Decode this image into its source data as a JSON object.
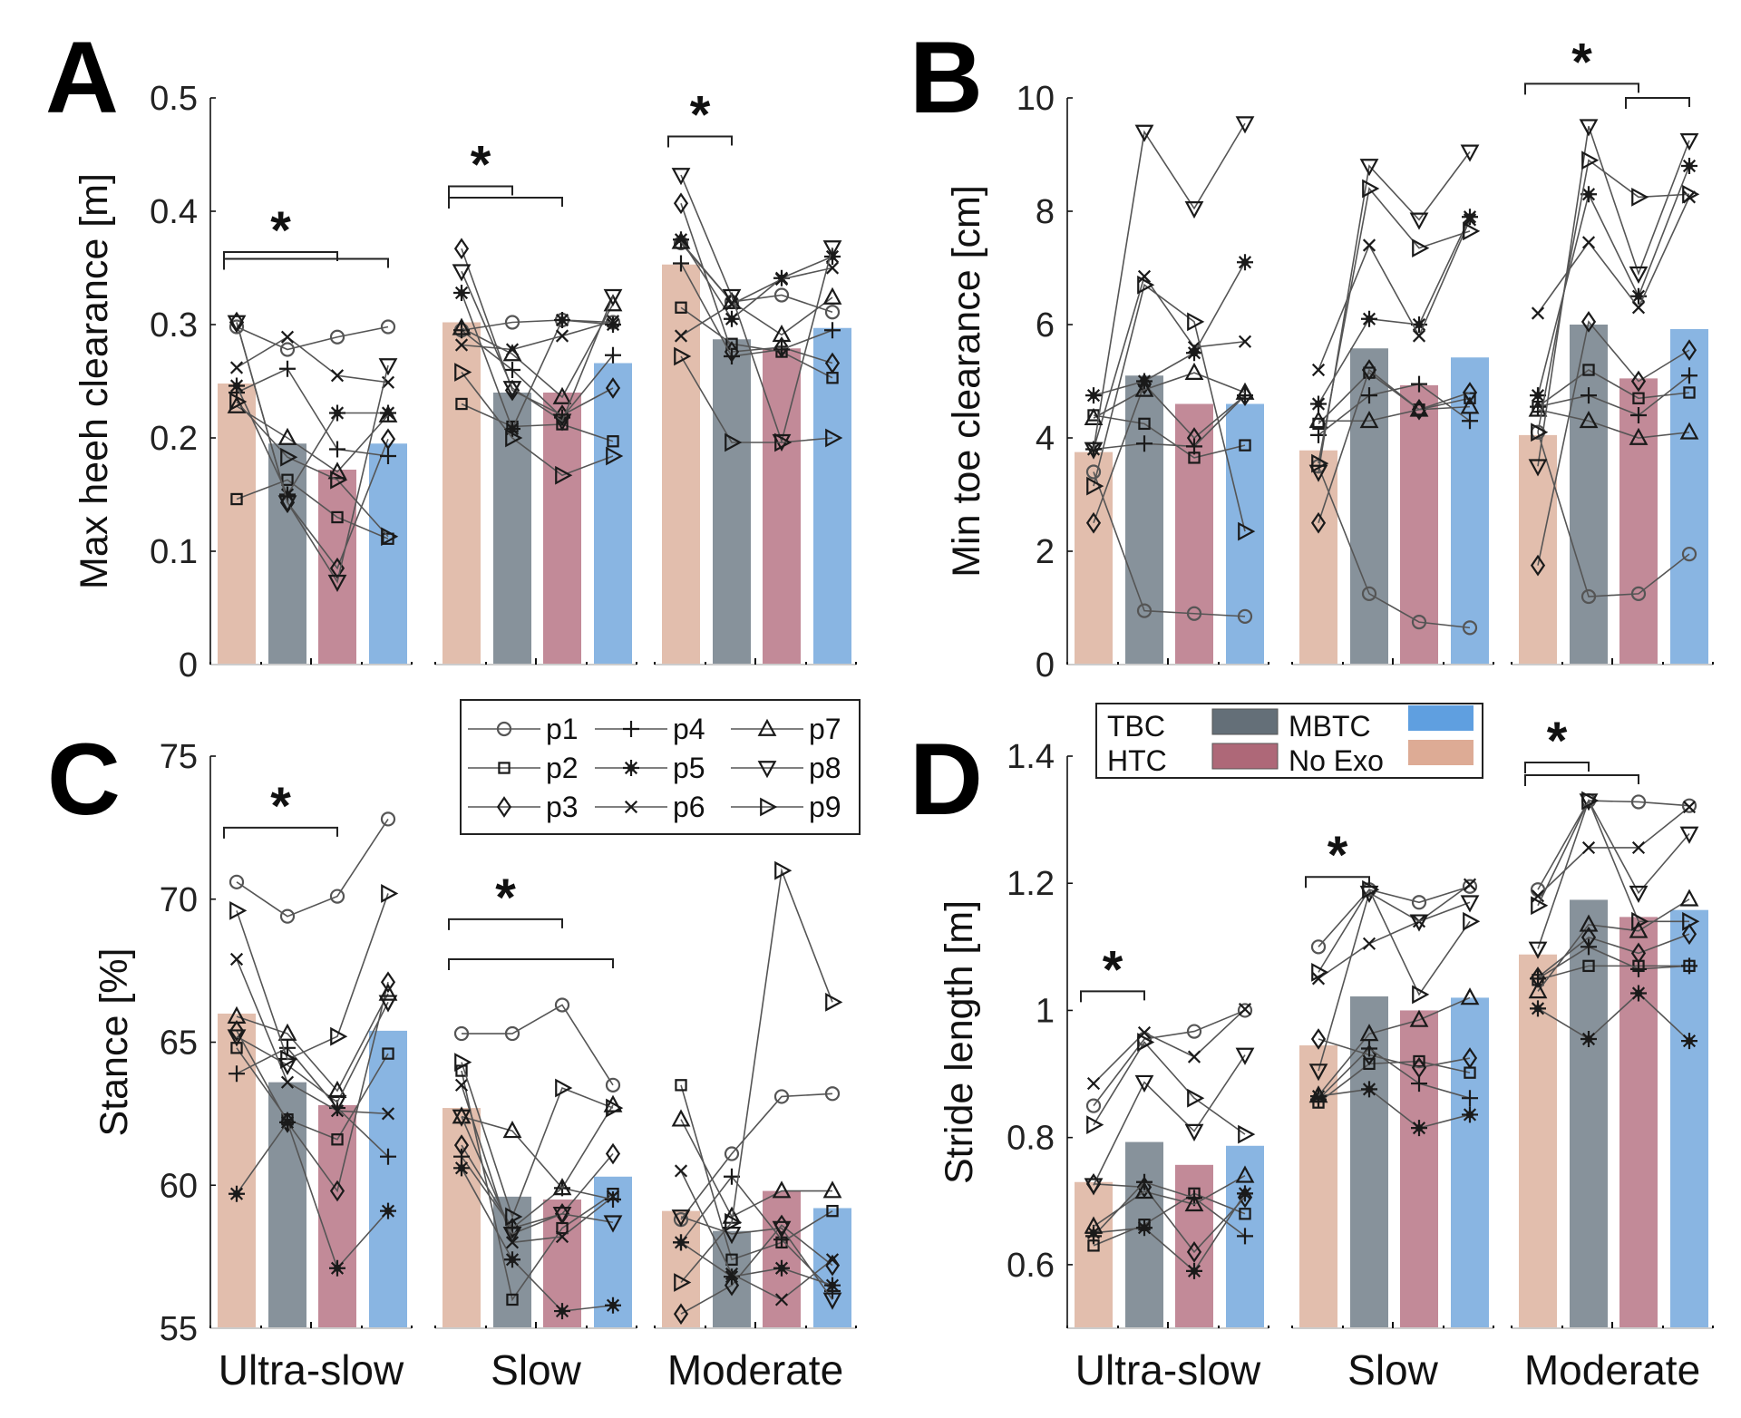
{
  "chart_data": [
    {
      "id": "A",
      "type": "bar",
      "panel_label": "A",
      "title": "",
      "ylabel": "Max heeh clearance [m]",
      "xlabel": "",
      "ylim": [
        0,
        0.5
      ],
      "yticks": [
        0,
        0.1,
        0.2,
        0.3,
        0.4,
        0.5
      ],
      "ytick_labels": [
        "0",
        "0.1",
        "0.2",
        "0.3",
        "0.4",
        "0.5"
      ],
      "categories": [
        "Ultra-slow",
        "Slow",
        "Moderate"
      ],
      "conditions": [
        "No Exo",
        "TBC",
        "HTC",
        "MBTC"
      ],
      "bar_values": [
        [
          0.248,
          0.195,
          0.172,
          0.195
        ],
        [
          0.302,
          0.24,
          0.24,
          0.266
        ],
        [
          0.353,
          0.287,
          0.279,
          0.297
        ]
      ],
      "participants": {
        "p1": [
          [
            0.298,
            0.278,
            0.289,
            0.298
          ],
          [
            0.295,
            0.302,
            0.304,
            0.302
          ],
          [
            0.372,
            0.32,
            0.326,
            0.311
          ]
        ],
        "p2": [
          [
            0.146,
            0.163,
            0.13,
            0.111
          ],
          [
            0.23,
            0.21,
            0.212,
            0.197
          ],
          [
            0.315,
            0.283,
            0.276,
            0.253
          ]
        ],
        "p3": [
          [
            0.302,
            0.143,
            0.085,
            0.199
          ],
          [
            0.367,
            0.242,
            0.22,
            0.244
          ],
          [
            0.407,
            0.276,
            0.28,
            0.266
          ]
        ],
        "p4": [
          [
            0.24,
            0.261,
            0.19,
            0.184
          ],
          [
            0.295,
            0.26,
            0.218,
            0.273
          ],
          [
            0.354,
            0.272,
            0.278,
            0.295
          ]
        ],
        "p5": [
          [
            0.246,
            0.15,
            0.222,
            0.222
          ],
          [
            0.328,
            0.208,
            0.304,
            0.3
          ],
          [
            0.375,
            0.305,
            0.341,
            0.36
          ]
        ],
        "p6": [
          [
            0.262,
            0.289,
            0.255,
            0.249
          ],
          [
            0.282,
            0.278,
            0.29,
            0.303
          ],
          [
            0.29,
            0.318,
            0.34,
            0.35
          ]
        ],
        "p7": [
          [
            0.228,
            0.2,
            0.17,
            0.22
          ],
          [
            0.297,
            0.274,
            0.236,
            0.318
          ],
          [
            0.373,
            0.32,
            0.291,
            0.324
          ]
        ],
        "p8": [
          [
            0.302,
            0.143,
            0.073,
            0.264
          ],
          [
            0.347,
            0.244,
            0.215,
            0.325
          ],
          [
            0.432,
            0.325,
            0.197,
            0.368
          ]
        ],
        "p9": [
          [
            0.232,
            0.183,
            0.163,
            0.113
          ],
          [
            0.258,
            0.2,
            0.167,
            0.184
          ],
          [
            0.272,
            0.196,
            0.196,
            0.2
          ]
        ]
      },
      "significance": [
        {
          "group": 0,
          "from": 0,
          "to": 2,
          "level": 0.364,
          "star": true
        },
        {
          "group": 0,
          "from": 0,
          "to": 3,
          "level": 0.358,
          "star": false
        },
        {
          "group": 1,
          "from": 0,
          "to": 1,
          "level": 0.422,
          "star": true
        },
        {
          "group": 1,
          "from": 0,
          "to": 2,
          "level": 0.412,
          "star": false
        },
        {
          "group": 2,
          "from": 0,
          "to": 1,
          "level": 0.466,
          "star": true
        }
      ],
      "show_group_labels": false
    },
    {
      "id": "B",
      "type": "bar",
      "panel_label": "B",
      "title": "",
      "ylabel": "Min toe clearance [cm]",
      "xlabel": "",
      "ylim": [
        0,
        10
      ],
      "yticks": [
        0,
        2,
        4,
        6,
        8,
        10
      ],
      "ytick_labels": [
        "0",
        "2",
        "4",
        "6",
        "8",
        "10"
      ],
      "categories": [
        "Ultra-slow",
        "Slow",
        "Moderate"
      ],
      "conditions": [
        "No Exo",
        "TBC",
        "HTC",
        "MBTC"
      ],
      "bar_values": [
        [
          3.75,
          5.1,
          4.6,
          4.6
        ],
        [
          3.78,
          5.58,
          4.93,
          5.42
        ],
        [
          4.05,
          6.0,
          5.05,
          5.92
        ]
      ],
      "participants": {
        "p1": [
          [
            3.4,
            0.95,
            0.9,
            0.85
          ],
          [
            3.5,
            1.25,
            0.75,
            0.65
          ],
          [
            4.1,
            1.2,
            1.25,
            1.95
          ]
        ],
        "p2": [
          [
            4.4,
            4.25,
            3.65,
            3.87
          ],
          [
            4.25,
            5.15,
            4.5,
            4.7
          ],
          [
            4.55,
            5.2,
            4.7,
            4.8
          ]
        ],
        "p3": [
          [
            2.5,
            4.95,
            4.0,
            4.75
          ],
          [
            2.5,
            5.2,
            4.5,
            4.8
          ],
          [
            1.75,
            6.05,
            5.0,
            5.55
          ]
        ],
        "p4": [
          [
            3.8,
            3.9,
            3.85,
            4.75
          ],
          [
            4.05,
            4.75,
            4.95,
            4.3
          ],
          [
            4.55,
            4.75,
            4.4,
            5.1
          ]
        ],
        "p5": [
          [
            4.75,
            5.0,
            5.5,
            7.1
          ],
          [
            4.6,
            6.1,
            6.0,
            7.9
          ],
          [
            4.75,
            8.3,
            6.5,
            8.8
          ]
        ],
        "p6": [
          [
            3.8,
            6.85,
            5.6,
            5.7
          ],
          [
            5.2,
            7.4,
            5.8,
            7.85
          ],
          [
            6.2,
            7.45,
            6.3,
            8.25
          ]
        ],
        "p7": [
          [
            4.35,
            4.85,
            5.15,
            4.8
          ],
          [
            4.3,
            4.3,
            4.5,
            4.55
          ],
          [
            4.5,
            4.3,
            4.0,
            4.1
          ]
        ],
        "p8": [
          [
            3.8,
            9.4,
            8.05,
            9.55
          ],
          [
            3.4,
            8.8,
            7.85,
            9.05
          ],
          [
            3.5,
            9.5,
            6.9,
            9.25
          ]
        ],
        "p9": [
          [
            3.15,
            6.7,
            6.05,
            2.35
          ],
          [
            3.55,
            8.4,
            7.35,
            7.65
          ],
          [
            4.1,
            8.9,
            8.25,
            8.3
          ]
        ]
      },
      "significance": [
        {
          "group": 2,
          "from": 0,
          "to": 2,
          "level": 10.25,
          "star": true
        },
        {
          "group": 2,
          "from": 2,
          "to": 3,
          "level": 10.0,
          "star": false
        }
      ],
      "show_group_labels": false
    },
    {
      "id": "C",
      "type": "bar",
      "panel_label": "C",
      "title": "",
      "ylabel": "Stance [%]",
      "xlabel": "",
      "ylim": [
        55,
        75
      ],
      "yticks": [
        55,
        60,
        65,
        70,
        75
      ],
      "ytick_labels": [
        "55",
        "60",
        "65",
        "70",
        "75"
      ],
      "categories": [
        "Ultra-slow",
        "Slow",
        "Moderate"
      ],
      "conditions": [
        "No Exo",
        "TBC",
        "HTC",
        "MBTC"
      ],
      "bar_values": [
        [
          66.0,
          63.6,
          62.8,
          65.4
        ],
        [
          62.7,
          59.6,
          59.5,
          60.3
        ],
        [
          59.1,
          58.4,
          59.8,
          59.2
        ]
      ],
      "participants": {
        "p1": [
          [
            70.6,
            69.4,
            70.1,
            72.8
          ],
          [
            65.3,
            65.3,
            66.3,
            63.5
          ],
          [
            58.8,
            61.1,
            63.1,
            63.2
          ]
        ],
        "p2": [
          [
            64.8,
            62.3,
            61.6,
            64.6
          ],
          [
            64.0,
            56.0,
            58.5,
            59.7
          ],
          [
            63.5,
            57.4,
            58.0,
            59.1
          ]
        ],
        "p3": [
          [
            65.4,
            62.2,
            59.8,
            67.1
          ],
          [
            61.4,
            58.5,
            59.0,
            61.1
          ],
          [
            55.5,
            56.5,
            58.6,
            57.2
          ]
        ],
        "p4": [
          [
            63.9,
            64.8,
            62.7,
            61.0
          ],
          [
            61.0,
            58.5,
            59.9,
            59.5
          ],
          [
            58.0,
            60.3,
            58.1,
            56.3
          ]
        ],
        "p5": [
          [
            59.7,
            62.2,
            57.1,
            59.1
          ],
          [
            60.6,
            57.4,
            55.6,
            55.8
          ],
          [
            58.0,
            56.8,
            57.1,
            56.5
          ]
        ],
        "p6": [
          [
            67.9,
            63.6,
            62.6,
            62.5
          ],
          [
            63.5,
            58.0,
            58.2,
            59.6
          ],
          [
            60.5,
            56.9,
            56.0,
            57.4
          ]
        ],
        "p7": [
          [
            65.9,
            65.3,
            63.3,
            66.7
          ],
          [
            62.4,
            61.9,
            59.9,
            62.8
          ],
          [
            62.3,
            58.9,
            59.8,
            59.8
          ]
        ],
        "p8": [
          [
            65.2,
            64.2,
            62.9,
            66.4
          ],
          [
            62.4,
            58.3,
            59.0,
            58.7
          ],
          [
            58.9,
            58.3,
            58.5,
            56.0
          ]
        ],
        "p9": [
          [
            69.6,
            64.4,
            65.2,
            70.2
          ],
          [
            64.3,
            58.9,
            63.4,
            62.7
          ],
          [
            56.6,
            58.7,
            71.0,
            66.4
          ]
        ]
      },
      "significance": [
        {
          "group": 0,
          "from": 0,
          "to": 2,
          "level": 72.5,
          "star": true
        },
        {
          "group": 1,
          "from": 0,
          "to": 2,
          "level": 69.3,
          "star": true
        },
        {
          "group": 1,
          "from": 0,
          "to": 3,
          "level": 67.9,
          "star": false
        }
      ],
      "show_group_labels": true
    },
    {
      "id": "D",
      "type": "bar",
      "panel_label": "D",
      "title": "",
      "ylabel": "Stride length [m]",
      "xlabel": "",
      "ylim": [
        0.5,
        1.4
      ],
      "yticks": [
        0.6,
        0.8,
        1.0,
        1.2,
        1.4
      ],
      "ytick_labels": [
        "0.6",
        "0.8",
        "1",
        "1.2",
        "1.4"
      ],
      "categories": [
        "Ultra-slow",
        "Slow",
        "Moderate"
      ],
      "conditions": [
        "No Exo",
        "TBC",
        "HTC",
        "MBTC"
      ],
      "bar_values": [
        [
          0.73,
          0.793,
          0.757,
          0.787
        ],
        [
          0.945,
          1.022,
          1.0,
          1.02
        ],
        [
          1.088,
          1.174,
          1.147,
          1.158
        ]
      ],
      "participants": {
        "p1": [
          [
            0.85,
            0.955,
            0.967,
            1.0
          ],
          [
            1.1,
            1.19,
            1.17,
            1.195
          ],
          [
            1.19,
            1.33,
            1.328,
            1.322
          ]
        ],
        "p2": [
          [
            0.63,
            0.663,
            0.712,
            0.68
          ],
          [
            0.855,
            0.916,
            0.92,
            0.902
          ],
          [
            1.048,
            1.07,
            1.07,
            1.07
          ]
        ],
        "p3": [
          [
            0.727,
            0.722,
            0.62,
            0.706
          ],
          [
            0.955,
            0.93,
            0.91,
            0.925
          ],
          [
            1.052,
            1.115,
            1.09,
            1.12
          ]
        ],
        "p4": [
          [
            0.645,
            0.73,
            0.705,
            0.645
          ],
          [
            0.86,
            0.94,
            0.885,
            0.862
          ],
          [
            1.05,
            1.1,
            1.065,
            1.07
          ]
        ],
        "p5": [
          [
            0.65,
            0.658,
            0.59,
            0.712
          ],
          [
            0.865,
            0.876,
            0.815,
            0.836
          ],
          [
            1.003,
            0.955,
            1.027,
            0.952
          ]
        ],
        "p6": [
          [
            0.885,
            0.965,
            0.927,
            1.002
          ],
          [
            1.05,
            1.105,
            1.14,
            1.198
          ],
          [
            1.18,
            1.256,
            1.256,
            1.32
          ]
        ],
        "p7": [
          [
            0.66,
            0.715,
            0.695,
            0.74
          ],
          [
            0.866,
            0.963,
            0.985,
            1.02
          ],
          [
            1.03,
            1.135,
            1.125,
            1.175
          ]
        ],
        "p8": [
          [
            0.725,
            0.887,
            0.81,
            0.93
          ],
          [
            0.905,
            1.185,
            1.14,
            1.17
          ],
          [
            1.097,
            1.33,
            1.185,
            1.278
          ]
        ],
        "p9": [
          [
            0.82,
            0.95,
            0.862,
            0.805
          ],
          [
            1.06,
            1.19,
            1.025,
            1.14
          ],
          [
            1.165,
            1.33,
            1.14,
            1.14
          ]
        ]
      },
      "significance": [
        {
          "group": 0,
          "from": 0,
          "to": 1,
          "level": 1.03,
          "star": true
        },
        {
          "group": 1,
          "from": 0,
          "to": 1,
          "level": 1.21,
          "star": true
        },
        {
          "group": 2,
          "from": 0,
          "to": 1,
          "level": 1.39,
          "star": true
        },
        {
          "group": 2,
          "from": 0,
          "to": 2,
          "level": 1.37,
          "star": false
        }
      ],
      "show_group_labels": true
    }
  ],
  "condition_colors": {
    "No Exo": "#e2bead",
    "TBC": "#87929b",
    "HTC": "#c28a98",
    "MBTC": "#89b5e2"
  },
  "legend_swatch_colors": {
    "TBC": "#646f78",
    "MBTC": "#5f9fe0",
    "HTC": "#ae6878",
    "No Exo": "#ddab95"
  },
  "participant_legend": {
    "entries": [
      {
        "id": "p1",
        "label": "p1",
        "marker": "circle"
      },
      {
        "id": "p2",
        "label": "p2",
        "marker": "square"
      },
      {
        "id": "p3",
        "label": "p3",
        "marker": "diamond"
      },
      {
        "id": "p4",
        "label": "p4",
        "marker": "plus"
      },
      {
        "id": "p5",
        "label": "p5",
        "marker": "asterisk-filled"
      },
      {
        "id": "p6",
        "label": "p6",
        "marker": "x"
      },
      {
        "id": "p7",
        "label": "p7",
        "marker": "triangle-up"
      },
      {
        "id": "p8",
        "label": "p8",
        "marker": "triangle-down"
      },
      {
        "id": "p9",
        "label": "p9",
        "marker": "triangle-right"
      }
    ]
  },
  "condition_legend": {
    "entries": [
      {
        "label": "TBC",
        "color_key": "TBC"
      },
      {
        "label": "MBTC",
        "color_key": "MBTC"
      },
      {
        "label": "HTC",
        "color_key": "HTC"
      },
      {
        "label": "No Exo",
        "color_key": "No Exo"
      }
    ]
  },
  "significance_symbol": "*"
}
